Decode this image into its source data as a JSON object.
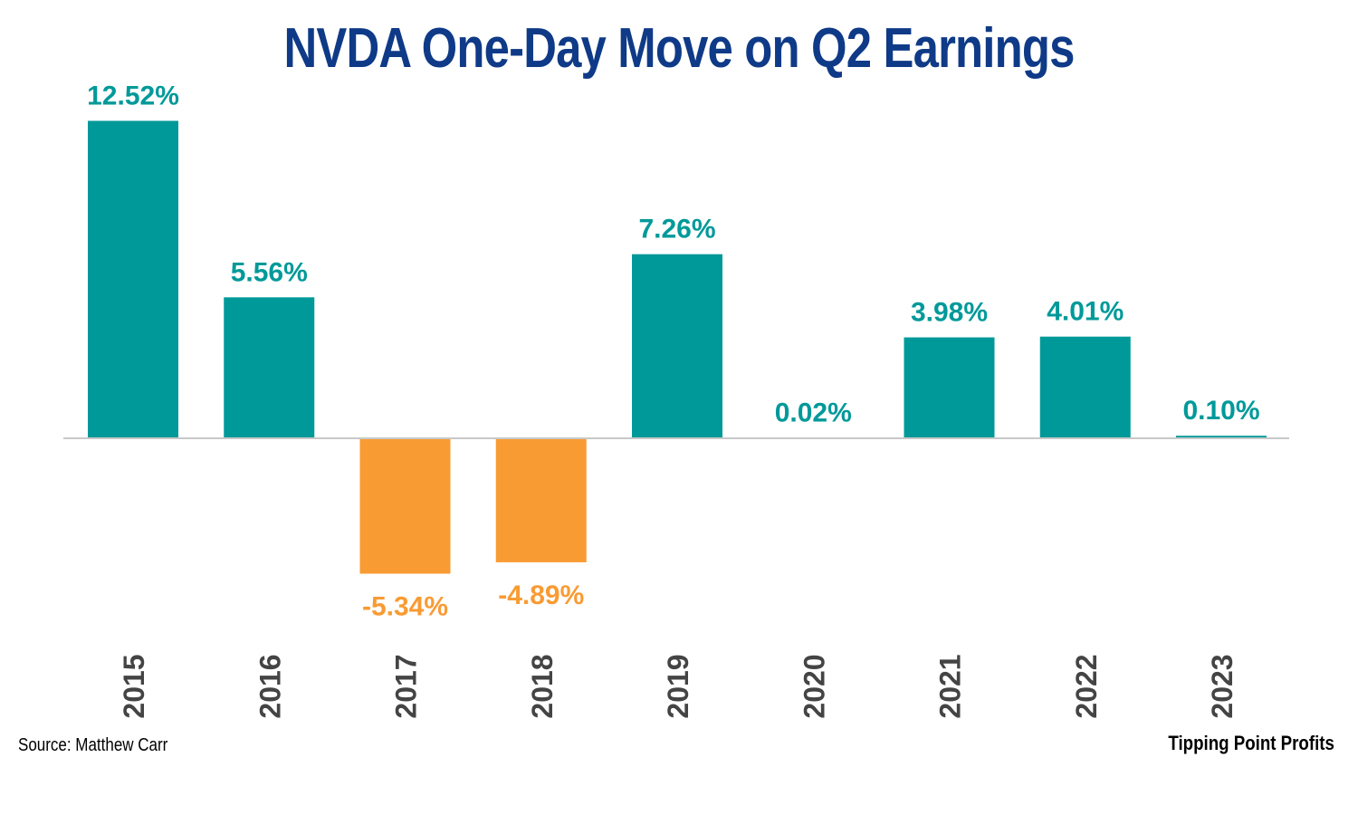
{
  "chart_data": {
    "type": "bar",
    "title": "NVDA One-Day Move on Q2 Earnings",
    "categories": [
      "2015",
      "2016",
      "2017",
      "2018",
      "2019",
      "2020",
      "2021",
      "2022",
      "2023"
    ],
    "values": [
      12.52,
      5.56,
      -5.34,
      -4.89,
      7.26,
      0.02,
      3.98,
      4.01,
      0.1
    ],
    "data_labels": [
      "12.52%",
      "5.56%",
      "-5.34%",
      "-4.89%",
      "7.26%",
      "0.02%",
      "3.98%",
      "4.01%",
      "0.10%"
    ],
    "xlabel": "",
    "ylabel": "",
    "ylim": [
      -6,
      13
    ],
    "grid": false,
    "legend": "none"
  },
  "footer": {
    "source": "Source: Matthew Carr",
    "brand": "Tipping Point Profits"
  },
  "colors": {
    "title": "#0f3a87",
    "positive": "#009999",
    "negative": "#f99b33",
    "axis": "#c8c8c8",
    "tick_label": "#444444"
  }
}
